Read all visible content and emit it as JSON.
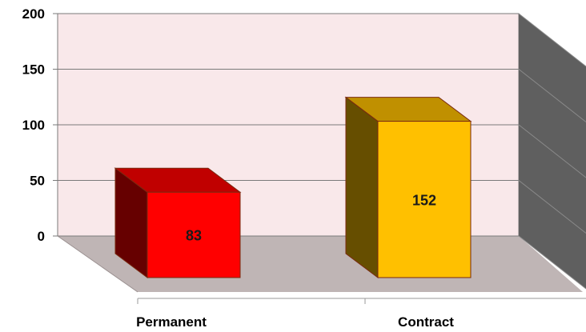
{
  "chart_data": {
    "type": "bar",
    "title": "",
    "xlabel": "",
    "ylabel": "",
    "categories": [
      "Permanent",
      "Contract"
    ],
    "values": [
      83,
      152
    ],
    "value_labels": [
      "83",
      "152"
    ],
    "ylim": [
      0,
      200
    ],
    "yticks": [
      0,
      50,
      100,
      150,
      200
    ],
    "ytick_labels": [
      "0",
      "50",
      "100",
      "150",
      "200"
    ],
    "grid": true,
    "legend": "none",
    "style": "3d-column",
    "colors": {
      "Permanent": {
        "front": "#ff0000",
        "top": "#c00000",
        "side": "#660000"
      },
      "Contract": {
        "front": "#ffc000",
        "top": "#c09000",
        "side": "#664e00"
      },
      "back_wall": "#f9e8ea",
      "side_wall": "#5f5f5f",
      "floor": "#bfb5b5",
      "gridline": "#7a7a7a",
      "bar_edge": "#7a2a10"
    }
  }
}
